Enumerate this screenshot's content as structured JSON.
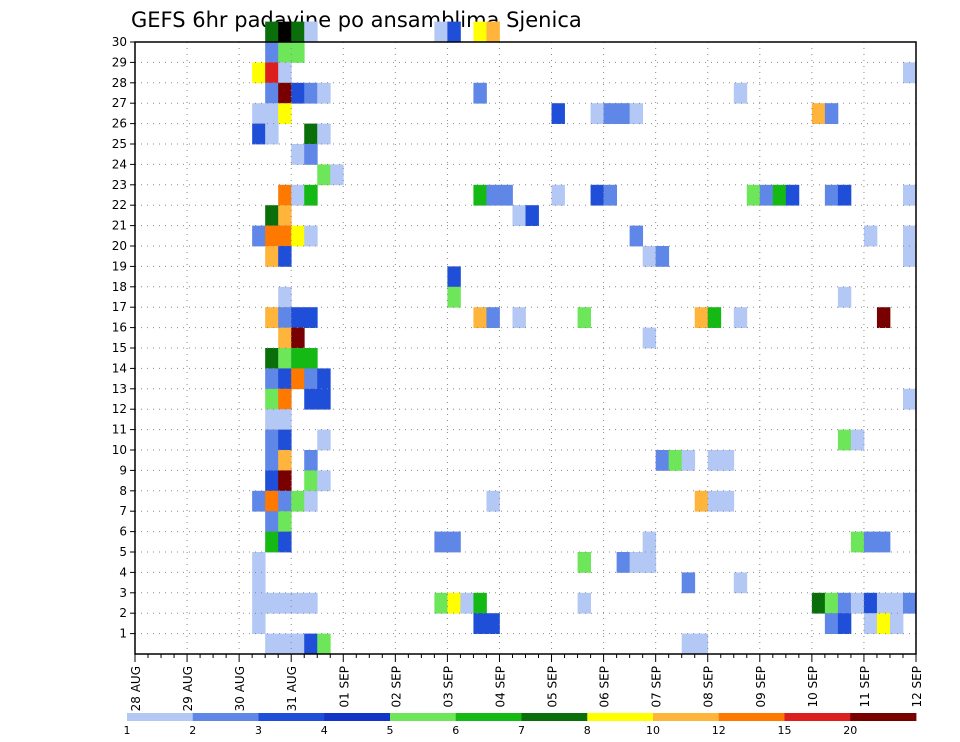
{
  "chart_data": {
    "type": "heatmap",
    "title": "GEFS 6hr padavine po ansamblima Sjenica",
    "xlabel": "",
    "ylabel": "",
    "x_tick_labels": [
      "28 AUG",
      "29 AUG",
      "30 AUG",
      "31 AUG",
      "01 SEP",
      "02 SEP",
      "03 SEP",
      "04 SEP",
      "05 SEP",
      "06 SEP",
      "07 SEP",
      "08 SEP",
      "09 SEP",
      "10 SEP",
      "11 SEP",
      "12 SEP"
    ],
    "x_range": [
      0,
      60
    ],
    "y_tick_labels": [
      "1",
      "2",
      "3",
      "4",
      "5",
      "6",
      "7",
      "8",
      "9",
      "10",
      "11",
      "12",
      "13",
      "14",
      "15",
      "16",
      "17",
      "18",
      "19",
      "20",
      "21",
      "22",
      "23",
      "24",
      "25",
      "26",
      "27",
      "28",
      "29",
      "30"
    ],
    "y_range": [
      0,
      30
    ],
    "grid": true,
    "legend": {
      "placement": "bottom",
      "thresholds": [
        "1",
        "2",
        "3",
        "4",
        "5",
        "6",
        "7",
        "8",
        "10",
        "12",
        "15",
        "20"
      ],
      "colors": [
        "#b4c8f5",
        "#5f87e8",
        "#1f4fd8",
        "#1335c7",
        "#6ee65a",
        "#14b914",
        "#0a6e0a",
        "#ffff00",
        "#ffb43c",
        "#ff7800",
        "#dc1e1e",
        "#780000"
      ]
    },
    "cells": [
      [
        10,
        30,
        7
      ],
      [
        11,
        30,
        14
      ],
      [
        12,
        30,
        7
      ],
      [
        13,
        30,
        1
      ],
      [
        23,
        30,
        1
      ],
      [
        24,
        30,
        3
      ],
      [
        26,
        30,
        8
      ],
      [
        27,
        30,
        9
      ],
      [
        10,
        29,
        2
      ],
      [
        11,
        29,
        5
      ],
      [
        12,
        29,
        5
      ],
      [
        9,
        28,
        8
      ],
      [
        10,
        28,
        11
      ],
      [
        11,
        28,
        1
      ],
      [
        59,
        28,
        1
      ],
      [
        10,
        27,
        2
      ],
      [
        11,
        27,
        12
      ],
      [
        12,
        27,
        3
      ],
      [
        13,
        27,
        2
      ],
      [
        14,
        27,
        1
      ],
      [
        26,
        27,
        2
      ],
      [
        46,
        27,
        1
      ],
      [
        9,
        26,
        1
      ],
      [
        10,
        26,
        1
      ],
      [
        11,
        26,
        8
      ],
      [
        32,
        26,
        3
      ],
      [
        35,
        26,
        1
      ],
      [
        36,
        26,
        2
      ],
      [
        37,
        26,
        2
      ],
      [
        38,
        26,
        1
      ],
      [
        52,
        26,
        9
      ],
      [
        53,
        26,
        2
      ],
      [
        9,
        25,
        3
      ],
      [
        10,
        25,
        1
      ],
      [
        13,
        25,
        7
      ],
      [
        14,
        25,
        1
      ],
      [
        12,
        24,
        1
      ],
      [
        13,
        24,
        2
      ],
      [
        14,
        23,
        5
      ],
      [
        15,
        23,
        1
      ],
      [
        11,
        22,
        10
      ],
      [
        12,
        22,
        1
      ],
      [
        13,
        22,
        6
      ],
      [
        26,
        22,
        6
      ],
      [
        27,
        22,
        2
      ],
      [
        28,
        22,
        2
      ],
      [
        32,
        22,
        1
      ],
      [
        35,
        22,
        3
      ],
      [
        36,
        22,
        2
      ],
      [
        47,
        22,
        5
      ],
      [
        48,
        22,
        2
      ],
      [
        49,
        22,
        6
      ],
      [
        50,
        22,
        3
      ],
      [
        53,
        22,
        2
      ],
      [
        54,
        22,
        3
      ],
      [
        59,
        22,
        1
      ],
      [
        10,
        21,
        7
      ],
      [
        11,
        21,
        9
      ],
      [
        29,
        21,
        1
      ],
      [
        30,
        21,
        3
      ],
      [
        9,
        20,
        2
      ],
      [
        10,
        20,
        10
      ],
      [
        11,
        20,
        10
      ],
      [
        12,
        20,
        8
      ],
      [
        13,
        20,
        1
      ],
      [
        38,
        20,
        2
      ],
      [
        56,
        20,
        1
      ],
      [
        59,
        20,
        1
      ],
      [
        10,
        19,
        9
      ],
      [
        11,
        19,
        3
      ],
      [
        39,
        19,
        1
      ],
      [
        40,
        19,
        2
      ],
      [
        59,
        19,
        1
      ],
      [
        24,
        18,
        3
      ],
      [
        11,
        17,
        1
      ],
      [
        24,
        17,
        5
      ],
      [
        54,
        17,
        1
      ],
      [
        10,
        16,
        9
      ],
      [
        11,
        16,
        2
      ],
      [
        12,
        16,
        3
      ],
      [
        13,
        16,
        3
      ],
      [
        26,
        16,
        9
      ],
      [
        27,
        16,
        2
      ],
      [
        29,
        16,
        1
      ],
      [
        34,
        16,
        5
      ],
      [
        43,
        16,
        9
      ],
      [
        44,
        16,
        6
      ],
      [
        46,
        16,
        1
      ],
      [
        57,
        16,
        12
      ],
      [
        11,
        15,
        9
      ],
      [
        12,
        15,
        12
      ],
      [
        39,
        15,
        1
      ],
      [
        10,
        14,
        7
      ],
      [
        11,
        14,
        5
      ],
      [
        12,
        14,
        6
      ],
      [
        13,
        14,
        6
      ],
      [
        10,
        13,
        2
      ],
      [
        11,
        13,
        3
      ],
      [
        12,
        13,
        10
      ],
      [
        13,
        13,
        2
      ],
      [
        14,
        13,
        3
      ],
      [
        10,
        12,
        5
      ],
      [
        11,
        12,
        10
      ],
      [
        13,
        12,
        3
      ],
      [
        14,
        12,
        3
      ],
      [
        59,
        12,
        1
      ],
      [
        10,
        11,
        1
      ],
      [
        11,
        11,
        1
      ],
      [
        10,
        10,
        2
      ],
      [
        11,
        10,
        3
      ],
      [
        14,
        10,
        1
      ],
      [
        54,
        10,
        5
      ],
      [
        55,
        10,
        1
      ],
      [
        10,
        9,
        2
      ],
      [
        11,
        9,
        9
      ],
      [
        13,
        9,
        2
      ],
      [
        40,
        9,
        2
      ],
      [
        41,
        9,
        5
      ],
      [
        42,
        9,
        1
      ],
      [
        44,
        9,
        1
      ],
      [
        45,
        9,
        1
      ],
      [
        10,
        8,
        3
      ],
      [
        11,
        8,
        12
      ],
      [
        13,
        8,
        5
      ],
      [
        14,
        8,
        1
      ],
      [
        9,
        7,
        2
      ],
      [
        10,
        7,
        10
      ],
      [
        11,
        7,
        2
      ],
      [
        12,
        7,
        5
      ],
      [
        13,
        7,
        1
      ],
      [
        27,
        7,
        1
      ],
      [
        43,
        7,
        9
      ],
      [
        44,
        7,
        1
      ],
      [
        45,
        7,
        1
      ],
      [
        10,
        6,
        2
      ],
      [
        11,
        6,
        5
      ],
      [
        10,
        5,
        6
      ],
      [
        11,
        5,
        3
      ],
      [
        23,
        5,
        2
      ],
      [
        24,
        5,
        2
      ],
      [
        39,
        5,
        1
      ],
      [
        55,
        5,
        5
      ],
      [
        56,
        5,
        2
      ],
      [
        57,
        5,
        2
      ],
      [
        39,
        4,
        1
      ],
      [
        9,
        4,
        1
      ],
      [
        34,
        4,
        5
      ],
      [
        37,
        4,
        2
      ],
      [
        38,
        4,
        1
      ],
      [
        39,
        4,
        1
      ],
      [
        9,
        3,
        1
      ],
      [
        42,
        3,
        2
      ],
      [
        46,
        3,
        1
      ],
      [
        9,
        2,
        1
      ],
      [
        10,
        2,
        1
      ],
      [
        11,
        2,
        1
      ],
      [
        12,
        2,
        1
      ],
      [
        13,
        2,
        1
      ],
      [
        23,
        2,
        5
      ],
      [
        24,
        2,
        8
      ],
      [
        25,
        2,
        1
      ],
      [
        26,
        2,
        6
      ],
      [
        34,
        2,
        1
      ],
      [
        52,
        2,
        7
      ],
      [
        53,
        2,
        5
      ],
      [
        54,
        2,
        2
      ],
      [
        55,
        2,
        1
      ],
      [
        56,
        2,
        3
      ],
      [
        57,
        2,
        1
      ],
      [
        58,
        2,
        1
      ],
      [
        59,
        2,
        2
      ],
      [
        9,
        1,
        1
      ],
      [
        26,
        1,
        3
      ],
      [
        27,
        1,
        3
      ],
      [
        53,
        1,
        2
      ],
      [
        54,
        1,
        3
      ],
      [
        56,
        1,
        1
      ],
      [
        57,
        1,
        8
      ],
      [
        58,
        1,
        1
      ],
      [
        10,
        0,
        1
      ],
      [
        11,
        0,
        1
      ],
      [
        12,
        0,
        1
      ],
      [
        13,
        0,
        3
      ],
      [
        14,
        0,
        5
      ],
      [
        42,
        0,
        1
      ],
      [
        43,
        0,
        1
      ]
    ]
  }
}
